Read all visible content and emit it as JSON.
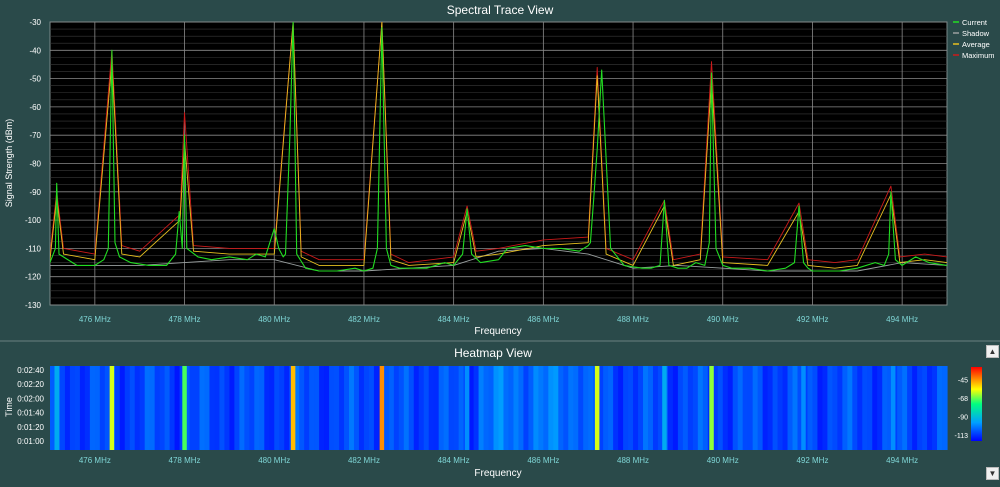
{
  "panels": {
    "spectral_title": "Spectral Trace View",
    "heatmap_title": "Heatmap View"
  },
  "colors": {
    "current": "#22dd22",
    "shadow": "#9aa0a0",
    "average": "#e8c020",
    "maximum": "#cc1a1a",
    "plot_bg": "#000000",
    "panel_bg": "#2a4a4a",
    "text": "#ffffff"
  },
  "chart_data": [
    {
      "type": "line",
      "title": "Spectral Trace View",
      "xlabel": "Frequency",
      "ylabel": "Signal Strength (dBm)",
      "xlim": [
        475,
        495
      ],
      "ylim": [
        -130,
        -30
      ],
      "x_ticks": [
        476,
        478,
        480,
        482,
        484,
        486,
        488,
        490,
        492,
        494
      ],
      "x_tick_labels": [
        "476 MHz",
        "478 MHz",
        "480 MHz",
        "482 MHz",
        "484 MHz",
        "486 MHz",
        "488 MHz",
        "490 MHz",
        "492 MHz",
        "494 MHz"
      ],
      "y_ticks": [
        -130,
        -120,
        -110,
        -100,
        -90,
        -80,
        -70,
        -60,
        -50,
        -40,
        -30
      ],
      "y_tick_labels": [
        "-130",
        "-120",
        "-110",
        "-100",
        "-90",
        "-80",
        "-70",
        "-60",
        "-50",
        "-40",
        "-30"
      ],
      "grid": true,
      "legend_position": "right",
      "series": [
        {
          "name": "Current",
          "x": [
            475.0,
            475.12,
            475.15,
            475.2,
            475.6,
            476.0,
            476.2,
            476.3,
            476.38,
            476.45,
            476.55,
            476.8,
            477.2,
            477.6,
            477.8,
            477.88,
            477.95,
            478.0,
            478.05,
            478.3,
            478.6,
            479.0,
            479.4,
            479.6,
            479.8,
            480.0,
            480.1,
            480.2,
            480.25,
            480.35,
            480.42,
            480.5,
            480.7,
            481.0,
            481.4,
            481.8,
            482.0,
            482.2,
            482.3,
            482.4,
            482.5,
            482.6,
            482.8,
            483.0,
            483.4,
            483.8,
            484.0,
            484.2,
            484.3,
            484.4,
            484.6,
            485.0,
            485.2,
            485.6,
            486.0,
            486.4,
            486.8,
            487.0,
            487.05,
            487.12,
            487.2,
            487.3,
            487.5,
            487.8,
            488.2,
            488.4,
            488.6,
            488.7,
            488.8,
            489.0,
            489.2,
            489.4,
            489.6,
            489.7,
            489.75,
            489.85,
            490.0,
            490.2,
            490.6,
            491.0,
            491.4,
            491.6,
            491.7,
            491.8,
            491.9,
            492.0,
            492.2,
            492.6,
            493.0,
            493.4,
            493.6,
            493.7,
            493.75,
            493.85,
            494.0,
            494.3,
            494.6,
            495.0
          ],
          "values": [
            -115,
            -110,
            -87,
            -112,
            -116,
            -116,
            -114,
            -110,
            -40,
            -108,
            -113,
            -115,
            -116,
            -116,
            -112,
            -97,
            -110,
            -70,
            -110,
            -113,
            -114,
            -113,
            -114,
            -112,
            -113,
            -103,
            -110,
            -113,
            -112,
            -70,
            -30,
            -112,
            -117,
            -118,
            -118,
            -117,
            -118,
            -117,
            -110,
            -32,
            -110,
            -116,
            -117,
            -117,
            -117,
            -115,
            -116,
            -112,
            -96,
            -112,
            -115,
            -114,
            -110,
            -109,
            -110,
            -110,
            -111,
            -109,
            -108,
            -93,
            -75,
            -47,
            -110,
            -116,
            -117,
            -117,
            -116,
            -93,
            -116,
            -117,
            -117,
            -115,
            -116,
            -108,
            -48,
            -110,
            -116,
            -117,
            -117,
            -118,
            -117,
            -115,
            -95,
            -115,
            -117,
            -118,
            -118,
            -118,
            -117,
            -115,
            -116,
            -112,
            -90,
            -114,
            -116,
            -113,
            -115,
            -116
          ]
        },
        {
          "name": "Shadow",
          "x": [
            475.0,
            476.0,
            477.0,
            478.0,
            479.0,
            480.0,
            481.0,
            482.0,
            483.0,
            484.0,
            485.0,
            486.0,
            487.0,
            488.0,
            489.0,
            490.0,
            491.0,
            492.0,
            493.0,
            494.0,
            495.0
          ],
          "values": [
            -116,
            -116,
            -116,
            -115,
            -114,
            -114,
            -118,
            -118,
            -117,
            -116,
            -111,
            -110,
            -112,
            -117,
            -116,
            -117,
            -118,
            -118,
            -118,
            -115,
            -116
          ]
        },
        {
          "name": "Average",
          "x": [
            475.0,
            475.15,
            475.3,
            476.0,
            476.38,
            476.6,
            477.0,
            477.9,
            478.0,
            478.2,
            479.0,
            480.0,
            480.42,
            480.6,
            481.0,
            482.0,
            482.4,
            482.6,
            483.0,
            484.0,
            484.3,
            484.5,
            485.0,
            486.0,
            487.0,
            487.2,
            487.4,
            488.0,
            488.7,
            488.9,
            489.5,
            489.75,
            490.0,
            491.0,
            491.7,
            491.9,
            492.5,
            493.0,
            493.75,
            493.95,
            494.5,
            495.0
          ],
          "values": [
            -114,
            -92,
            -112,
            -114,
            -44,
            -112,
            -113,
            -100,
            -72,
            -111,
            -112,
            -112,
            -30,
            -113,
            -116,
            -116,
            -30,
            -114,
            -116,
            -115,
            -97,
            -113,
            -112,
            -109,
            -108,
            -49,
            -112,
            -116,
            -95,
            -116,
            -114,
            -50,
            -115,
            -116,
            -97,
            -116,
            -117,
            -116,
            -91,
            -115,
            -114,
            -115
          ]
        },
        {
          "name": "Maximum",
          "x": [
            475.0,
            475.15,
            475.3,
            476.0,
            476.38,
            476.6,
            477.0,
            477.9,
            478.0,
            478.2,
            479.0,
            480.0,
            480.42,
            480.6,
            481.0,
            482.0,
            482.4,
            482.6,
            483.0,
            484.0,
            484.3,
            484.5,
            485.0,
            486.0,
            487.0,
            487.2,
            487.4,
            488.0,
            488.7,
            488.9,
            489.5,
            489.75,
            490.0,
            491.0,
            491.7,
            491.9,
            492.5,
            493.0,
            493.75,
            493.95,
            494.5,
            495.0
          ],
          "values": [
            -112,
            -90,
            -110,
            -112,
            -40,
            -109,
            -111,
            -98,
            -62,
            -109,
            -110,
            -110,
            -30,
            -111,
            -114,
            -114,
            -30,
            -112,
            -115,
            -113,
            -95,
            -111,
            -110,
            -107,
            -106,
            -46,
            -110,
            -114,
            -93,
            -114,
            -112,
            -44,
            -113,
            -114,
            -94,
            -114,
            -115,
            -114,
            -88,
            -113,
            -112,
            -113
          ]
        }
      ]
    },
    {
      "type": "heatmap",
      "title": "Heatmap View",
      "xlabel": "Frequency",
      "ylabel": "Time",
      "xlim": [
        475,
        495
      ],
      "x_tick_labels": [
        "476 MHz",
        "478 MHz",
        "480 MHz",
        "482 MHz",
        "484 MHz",
        "486 MHz",
        "488 MHz",
        "490 MHz",
        "492 MHz",
        "494 MHz"
      ],
      "y_tick_labels": [
        "0:01:00",
        "0:01:20",
        "0:01:40",
        "0:02:00",
        "0:02:20",
        "0:02:40"
      ],
      "colorbar_ticks": [
        "-45",
        "-68",
        "-90",
        "-113"
      ],
      "colorbar_range": [
        -120,
        -30
      ],
      "hot_bands_mhz": [
        475.15,
        476.38,
        478.0,
        480.42,
        482.4,
        484.3,
        487.2,
        488.7,
        489.75,
        491.8,
        493.8
      ],
      "band_levels_dbm": [
        -95,
        -60,
        -70,
        -50,
        -45,
        -100,
        -60,
        -95,
        -65,
        -100,
        -100
      ]
    }
  ]
}
